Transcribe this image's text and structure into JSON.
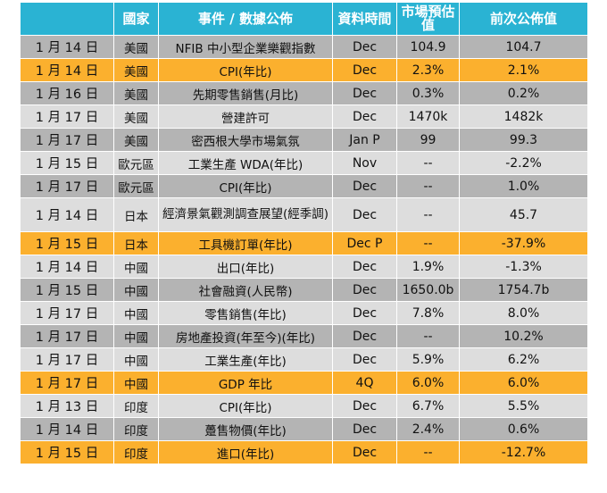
{
  "headers": [
    "",
    "國家",
    "事件 / 數據公佈",
    "資料時間",
    "市場預估值",
    "前次公佈值"
  ],
  "rows": [
    {
      "date": "1 月 14 日",
      "country": "美國",
      "event": "NFIB  中小型企業樂觀指數",
      "period": "Dec",
      "forecast": "104.9",
      "previous": "104.7",
      "style": "dark"
    },
    {
      "date": "1 月 14 日",
      "country": "美國",
      "event": "CPI(年比)",
      "period": "Dec",
      "forecast": "2.3%",
      "previous": "2.1%",
      "style": "orange"
    },
    {
      "date": "1 月 16 日",
      "country": "美國",
      "event": "先期零售銷售(月比)",
      "period": "Dec",
      "forecast": "0.3%",
      "previous": "0.2%",
      "style": "dark"
    },
    {
      "date": "1 月 17 日",
      "country": "美國",
      "event": "營建許可",
      "period": "Dec",
      "forecast": "1470k",
      "previous": "1482k",
      "style": "light"
    },
    {
      "date": "1 月 17 日",
      "country": "美國",
      "event": "密西根大學市場氣氛",
      "period": "Jan P",
      "forecast": "99",
      "previous": "99.3",
      "style": "dark"
    },
    {
      "date": "1 月 15 日",
      "country": "歐元區",
      "event": "工業生產 WDA(年比)",
      "period": "Nov",
      "forecast": "--",
      "previous": "-2.2%",
      "style": "light"
    },
    {
      "date": "1 月 17 日",
      "country": "歐元區",
      "event": "CPI(年比)",
      "period": "Dec",
      "forecast": "--",
      "previous": "1.0%",
      "style": "dark"
    },
    {
      "date": "1 月 14 日",
      "country": "日本",
      "event": "經濟景氣觀測調查展望(經季調)",
      "period": "Dec",
      "forecast": "--",
      "previous": "45.7",
      "style": "light",
      "tall": true
    },
    {
      "date": "1 月 15 日",
      "country": "日本",
      "event": "工具機訂單(年比)",
      "period": "Dec P",
      "forecast": "--",
      "previous": "-37.9%",
      "style": "orange"
    },
    {
      "date": "1 月 14 日",
      "country": "中國",
      "event": "出口(年比)",
      "period": "Dec",
      "forecast": "1.9%",
      "previous": "-1.3%",
      "style": "light"
    },
    {
      "date": "1 月 15 日",
      "country": "中國",
      "event": "社會融資(人民幣)",
      "period": "Dec",
      "forecast": "1650.0b",
      "previous": "1754.7b",
      "style": "dark"
    },
    {
      "date": "1 月 17 日",
      "country": "中國",
      "event": "零售銷售(年比)",
      "period": "Dec",
      "forecast": "7.8%",
      "previous": "8.0%",
      "style": "light"
    },
    {
      "date": "1 月 17 日",
      "country": "中國",
      "event": "房地產投資(年至今)(年比)",
      "period": "Dec",
      "forecast": "--",
      "previous": "10.2%",
      "style": "dark"
    },
    {
      "date": "1 月 17 日",
      "country": "中國",
      "event": "工業生產(年比)",
      "period": "Dec",
      "forecast": "5.9%",
      "previous": "6.2%",
      "style": "light"
    },
    {
      "date": "1 月 17 日",
      "country": "中國",
      "event": "GDP 年比",
      "period": "4Q",
      "forecast": "6.0%",
      "previous": "6.0%",
      "style": "orange"
    },
    {
      "date": "1 月 13 日",
      "country": "印度",
      "event": "CPI(年比)",
      "period": "Dec",
      "forecast": "6.7%",
      "previous": "5.5%",
      "style": "light"
    },
    {
      "date": "1 月 14 日",
      "country": "印度",
      "event": "躉售物價(年比)",
      "period": "Dec",
      "forecast": "2.4%",
      "previous": "0.6%",
      "style": "dark"
    },
    {
      "date": "1 月 15 日",
      "country": "印度",
      "event": "進口(年比)",
      "period": "Dec",
      "forecast": "--",
      "previous": "-12.7%",
      "style": "orange"
    }
  ],
  "colors": {
    "header": "#2ab3d3",
    "row_dark": "#b4b4b4",
    "row_light": "#dddddd",
    "row_highlight": "#fbb02e"
  }
}
